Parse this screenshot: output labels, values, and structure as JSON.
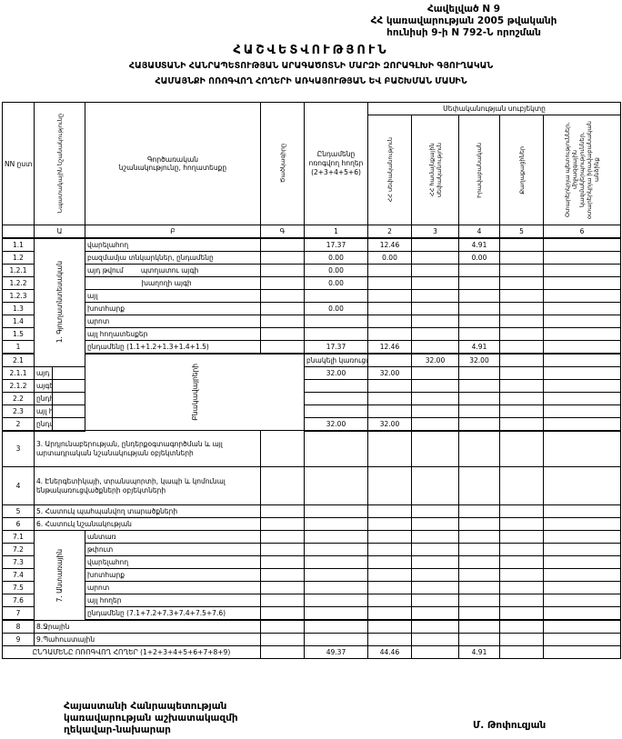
{
  "annex": [
    "Հավելված N 9",
    "ՀՀ կառավարության 2005 թվականի",
    "հունիսի 9-ի N 792-Ն որոշման"
  ],
  "title": {
    "main": "ՀԱՇՎԵՏՎՈՒԹՅՈՒՆ",
    "line2": "ՀԱՅԱՍՏԱՆԻ ՀԱՆՐԱՊԵՏՈՒԹՅԱՆ ԱՐԱԳԱԾՈՏՆԻ ՄԱՐԶԻ ԶՈՐԱԳԼԽԻ ԳՅՈՒՂԱԿԱՆ",
    "line3": "ՀԱՄԱՅՆՔԻ ՈՌՈԳՎՈՂ ՀՈՂԵՐԻ ԱՌԿԱՅՈՒԹՅԱՆ ԵՎ ԲԱՇԽՄԱՆ ՄԱՍԻՆ"
  },
  "headers": {
    "nn": "NN ըստ",
    "purpose": "Նպատակային նշանակությունը",
    "function": "Գործառական նշանակությունը, հողատեսքը",
    "code": "Ծածկագիրը",
    "total": "Ընդամենը ոռոգվող հողեր (2+3+4+5+6)",
    "owners_group": "Սեփականության սուբյեկտը",
    "owners": [
      "ՀՀ սեփականություն",
      "ՀՀ համայնքային սեփականություն",
      "Իրավաբանական",
      "Քաղաքացիներ",
      "Օտարերկրյա պետություններ, միջազգային կազմակերպություններ, օտարերկրյա իրավաբանական անձինք"
    ],
    "numbers": [
      "Ա",
      "Բ",
      "Գ",
      "1",
      "2",
      "3",
      "4",
      "5",
      "6"
    ]
  },
  "rows": [
    {
      "nn": "1.1",
      "group": "1. Գյուղատնտեսական",
      "span": 10,
      "label": "վարելահող",
      "v": [
        "",
        "17.37",
        "12.46",
        "",
        "4.91",
        "",
        ""
      ]
    },
    {
      "nn": "1.2",
      "label": "բազմամյա տնկարկներ, ընդամենը",
      "v": [
        "",
        "0.00",
        "0.00",
        "",
        "0.00",
        "",
        ""
      ]
    },
    {
      "nn": "1.2.1",
      "label": "այդ թվում        պտղատու այգի",
      "v": [
        "",
        "0.00",
        "",
        "",
        "",
        "",
        ""
      ]
    },
    {
      "nn": "1.2.2",
      "label": "                         խաղողի այգի",
      "v": [
        "",
        "0.00",
        "",
        "",
        "",
        "",
        ""
      ]
    },
    {
      "nn": "1.2.3",
      "label": "այլ",
      "v": [
        "",
        "",
        "",
        "",
        "",
        "",
        ""
      ]
    },
    {
      "nn": "1.3",
      "label": "խոտհարք",
      "v": [
        "",
        "0.00",
        "",
        "",
        "",
        "",
        ""
      ]
    },
    {
      "nn": "1.4",
      "label": "արոտ",
      "v": [
        "",
        "",
        "",
        "",
        "",
        "",
        ""
      ]
    },
    {
      "nn": "1.5",
      "label": "այլ հողատեսքեր",
      "v": [
        "",
        "",
        "",
        "",
        "",
        "",
        ""
      ]
    },
    {
      "nn": "1",
      "label": "ընդամենը (1.1+1.2+1.3+1.4+1.5)",
      "v": [
        "",
        "17.37",
        "12.46",
        "",
        "4.91",
        "",
        ""
      ],
      "thick": true
    },
    {
      "nn": "2.1",
      "group": "Բնակավայրերի",
      "span": 6,
      "label": "բնակելի կառուցապատման",
      "v": [
        "",
        "32.00",
        "32.00",
        "",
        "",
        "",
        ""
      ]
    },
    {
      "nn": "2.1.1",
      "label": "այդ թվում տնամերձ հողեր",
      "v": [
        "",
        "32.00",
        "32.00",
        "",
        "",
        "",
        ""
      ]
    },
    {
      "nn": "2.1.2",
      "label": "այգեգործական (ամառանոցային)",
      "v": [
        "",
        "",
        "",
        "",
        "",
        "",
        ""
      ]
    },
    {
      "nn": "2.2",
      "label": "ընդհանուր օգտագործման",
      "v": [
        "",
        "",
        "",
        "",
        "",
        "",
        ""
      ]
    },
    {
      "nn": "2.3",
      "label": "այլ հողեր",
      "v": [
        "",
        "",
        "",
        "",
        "",
        "",
        ""
      ]
    },
    {
      "nn": "2",
      "label": "ընդամենը (2.1+2.2+2.3)",
      "v": [
        "",
        "32.00",
        "32.00",
        "",
        "",
        "",
        ""
      ],
      "thick": true
    },
    {
      "nn": "3",
      "full": "3. Արդյունաբերության, ընդերքօգտագործման և այլ արտադրական նշանակության օբյեկտների",
      "tall": 40,
      "v": [
        "",
        "",
        "",
        "",
        "",
        "",
        ""
      ]
    },
    {
      "nn": "4",
      "full": "4. Էներգետիկայի, տրանսպորտի, կապի և կոմունալ ենթակառուցվածքների օբյեկտների",
      "tall": 42,
      "v": [
        "",
        "",
        "",
        "",
        "",
        "",
        ""
      ]
    },
    {
      "nn": "5",
      "full": "5. Հատուկ պահպանվող տարածքների",
      "v": [
        "",
        "",
        "",
        "",
        "",
        "",
        ""
      ]
    },
    {
      "nn": "6",
      "full": "6. Հատուկ նշանակության",
      "v": [
        "",
        "",
        "",
        "",
        "",
        "",
        ""
      ]
    },
    {
      "nn": "7.1",
      "group": "7. Անտառային",
      "span": 7,
      "label": "անտառ",
      "v": [
        "",
        "",
        "",
        "",
        "",
        "",
        ""
      ]
    },
    {
      "nn": "7.2",
      "label": "թփուտ",
      "v": [
        "",
        "",
        "",
        "",
        "",
        "",
        ""
      ]
    },
    {
      "nn": "7.3",
      "label": "վարելահող",
      "v": [
        "",
        "",
        "",
        "",
        "",
        "",
        ""
      ]
    },
    {
      "nn": "7.4",
      "label": "խոտհարք",
      "v": [
        "",
        "",
        "",
        "",
        "",
        "",
        ""
      ]
    },
    {
      "nn": "7.5",
      "label": "արոտ",
      "v": [
        "",
        "",
        "",
        "",
        "",
        "",
        ""
      ]
    },
    {
      "nn": "7.6",
      "label": "այլ հողեր",
      "v": [
        "",
        "",
        "",
        "",
        "",
        "",
        ""
      ]
    },
    {
      "nn": "7",
      "label": "ընդամենը (7.1+7.2+7.3+7.4+7.5+7.6)",
      "v": [
        "",
        "",
        "",
        "",
        "",
        "",
        ""
      ],
      "thick": true
    },
    {
      "nn": "8",
      "full": "8.Ջրային",
      "v": [
        "",
        "",
        "",
        "",
        "",
        "",
        ""
      ]
    },
    {
      "nn": "9",
      "full": "9.Պահուստային",
      "v": [
        "",
        "",
        "",
        "",
        "",
        "",
        ""
      ]
    },
    {
      "total": "ԸՆԴԱՄԵՆԸ ՈՌՈԳՎՈՂ ՀՈՂԵՐ (1+2+3+4+5+6+7+8+9)",
      "v": [
        "",
        "49.37",
        "44.46",
        "",
        "4.91",
        "",
        ""
      ]
    }
  ],
  "signature": {
    "position": [
      "Հայաստանի Հանրապետության",
      "կառավարության աշխատակազմի",
      "ղեկավար-նախարար"
    ],
    "name": "Մ. Թոփուզյան"
  }
}
